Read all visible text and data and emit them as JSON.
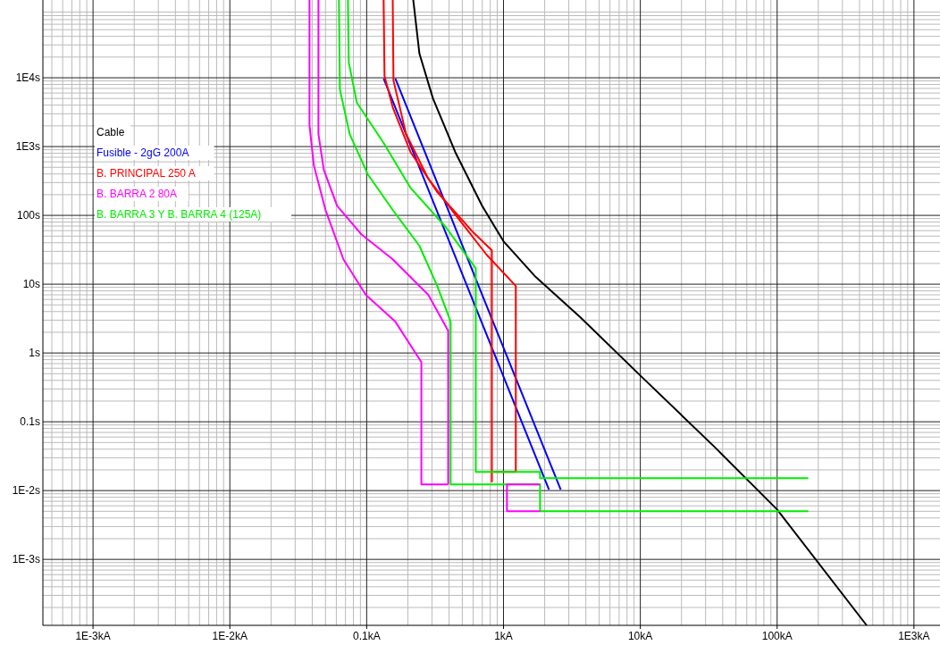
{
  "chart_data": {
    "type": "line",
    "log": "xy",
    "grid": true,
    "legend": "top left",
    "line_style": "solid",
    "marker": "none",
    "xlim": [
      0.00043,
      1550
    ],
    "ylim": [
      0.00011,
      135000
    ],
    "xticks": [
      {
        "value": 0.001,
        "label": "1E-3kA"
      },
      {
        "value": 0.01,
        "label": "1E-2kA"
      },
      {
        "value": 0.1,
        "label": "0.1kA"
      },
      {
        "value": 1,
        "label": "1kA"
      },
      {
        "value": 10,
        "label": "10kA"
      },
      {
        "value": 100,
        "label": "100kA"
      },
      {
        "value": 1000,
        "label": "1E3kA"
      }
    ],
    "yticks": [
      {
        "value": 0.001,
        "label": "1E-3s"
      },
      {
        "value": 0.01,
        "label": "1E-2s"
      },
      {
        "value": 0.1,
        "label": "0.1s"
      },
      {
        "value": 1,
        "label": "1s"
      },
      {
        "value": 10,
        "label": "10s"
      },
      {
        "value": 100,
        "label": "100s"
      },
      {
        "value": 1000,
        "label": "1E3s"
      },
      {
        "value": 10000,
        "label": "1E4s"
      }
    ],
    "series": [
      {
        "name": "Cable",
        "color": "#000000",
        "x": [
          0.219,
          0.243,
          0.305,
          0.444,
          0.697,
          1,
          1.72,
          3.65,
          10,
          34.8,
          100,
          451
        ],
        "values": [
          135000,
          22400,
          5020,
          832,
          138,
          42,
          12.7,
          3.3,
          0.47,
          0.0433,
          0.0053,
          0.00011
        ]
      },
      {
        "name": "Fusible - 2gG 200A",
        "color": "#0000ff",
        "x": [
          0.133,
          0.516,
          2.15
        ],
        "values": [
          9770,
          12,
          0.0103
        ]
      },
      {
        "color": "#0000ff",
        "x": [
          0.162,
          0.646,
          2.62
        ],
        "values": [
          9770,
          10.3,
          0.0103
        ]
      },
      {
        "name": "B. PRINCIPAL 250 A",
        "color": "#ff0000",
        "x": [
          0.133,
          0.135,
          0.155,
          0.209,
          0.328,
          0.6,
          0.822,
          0.822
        ],
        "values": [
          135000,
          10600,
          3730,
          832,
          218,
          56.7,
          31,
          0.0131
        ]
      },
      {
        "color": "#ff0000",
        "x": [
          0.155,
          0.157,
          0.194,
          0.282,
          0.444,
          0.751,
          1.23,
          1.23,
          0.822
        ],
        "values": [
          135000,
          9120,
          1520,
          342,
          103,
          26.9,
          9.4,
          0.0187,
          0.0187
        ]
      },
      {
        "name": "B. BARRA 2 80A",
        "color": "#ff00ff",
        "x": [
          0.0382,
          0.0382,
          0.0411,
          0.05,
          0.0676,
          0.0985,
          0.162,
          0.251,
          0.251,
          0.394
        ],
        "values": [
          135000,
          2050,
          533,
          120,
          23,
          7,
          2.85,
          0.74,
          0.0123,
          0.0123
        ]
      },
      {
        "color": "#ff00ff",
        "x": [
          0.0444,
          0.0444,
          0.0486,
          0.0608,
          0.0914,
          0.155,
          0.282,
          0.394,
          0.394
        ],
        "values": [
          135000,
          1520,
          458,
          138,
          53,
          23,
          7,
          2.1,
          0.0123
        ]
      },
      {
        "name": "B. BARRA 3 Y B. BARRA 4 (125A)",
        "color": "#00ee00",
        "x": [
          0.0627,
          0.0637,
          0.0751,
          0.102,
          0.155,
          0.243,
          0.328,
          0.411,
          0.411,
          1.85,
          1.85,
          169
        ],
        "values": [
          135000,
          6770,
          1520,
          394,
          120,
          36,
          9.4,
          2.85,
          0.0123,
          0.0123,
          0.005,
          0.005
        ]
      },
      {
        "color": "#00ee00",
        "x": [
          0.0729,
          0.074,
          0.0848,
          0.133,
          0.209,
          0.382,
          0.627,
          0.627,
          0.627,
          1.85,
          1.85,
          169
        ],
        "values": [
          135000,
          16600,
          4340,
          1130,
          252,
          66,
          17,
          4.5,
          0.0187,
          0.0187,
          0.0152,
          0.0152
        ]
      },
      {
        "color": "#ff00ff",
        "x": [
          1.85,
          1.06,
          1.06,
          1.85
        ],
        "values": [
          0.0123,
          0.0123,
          0.005,
          0.005
        ]
      }
    ]
  }
}
